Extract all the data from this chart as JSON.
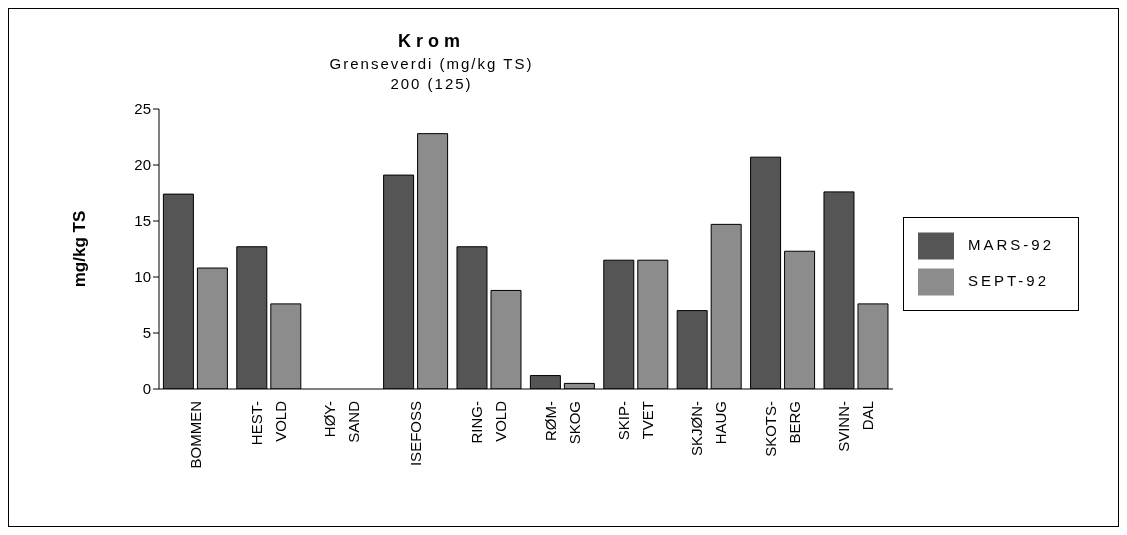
{
  "chart_data": {
    "type": "bar",
    "title": "Krom",
    "subtitle": "Grenseverdi (mg/kg TS)\n200 (125)",
    "ylabel": "mg/kg TS",
    "categories": [
      "BOMMEN",
      "HEST-\nVOLD",
      "HØY-\nSAND",
      "ISEFOSS",
      "RING-\nVOLD",
      "RØM-\nSKOG",
      "SKIP-\nTVET",
      "SKJØN-\nHAUG",
      "SKOTS-\nBERG",
      "SVINN-\nDAL"
    ],
    "series": [
      {
        "name": "MARS-92",
        "color": "#555555",
        "values": [
          17.4,
          12.7,
          null,
          19.1,
          12.7,
          1.2,
          11.5,
          7.0,
          20.7,
          17.6
        ]
      },
      {
        "name": "SEPT-92",
        "color": "#8c8c8c",
        "values": [
          10.8,
          7.6,
          null,
          22.8,
          8.8,
          0.5,
          11.5,
          14.7,
          12.3,
          7.6
        ]
      }
    ],
    "ylim": [
      0,
      25
    ],
    "yticks": [
      0,
      5,
      10,
      15,
      20,
      25
    ],
    "grid": false,
    "legend": "right"
  }
}
